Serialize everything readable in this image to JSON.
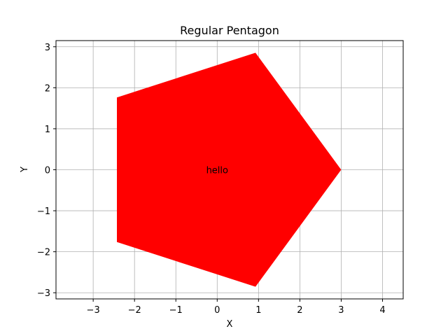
{
  "chart_data": {
    "type": "area",
    "title": "Regular Pentagon",
    "xlabel": "X",
    "ylabel": "Y",
    "xlim": [
      -3.9,
      4.5
    ],
    "ylim": [
      -3.15,
      3.15
    ],
    "xticks": [
      -3,
      -2,
      -1,
      0,
      1,
      2,
      3,
      4
    ],
    "yticks": [
      -3,
      -2,
      -1,
      0,
      1,
      2,
      3
    ],
    "grid": true,
    "fill_color": "#ff0000",
    "polygon": {
      "x": [
        3.0,
        0.927,
        -2.427,
        -2.427,
        0.927
      ],
      "y": [
        0.0,
        2.853,
        1.763,
        -1.763,
        -2.853
      ]
    },
    "annotations": [
      {
        "text": "hello",
        "x": 0.0,
        "y": 0.0
      }
    ]
  }
}
